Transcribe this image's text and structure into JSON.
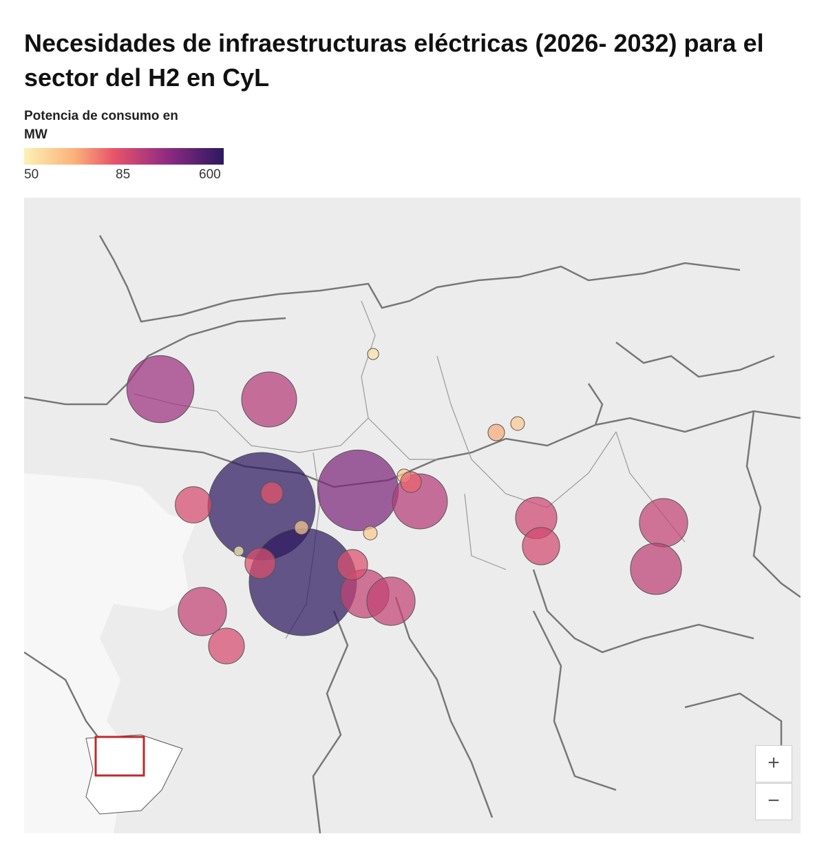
{
  "title": "Necesidades de infraestructuras eléctricas (2026- 2032) para el sector del H2 en CyL",
  "legend": {
    "title": "Potencia de consumo en MW",
    "ticks": [
      50,
      85,
      600
    ]
  },
  "bubbles": {
    "values": [
      300,
      230,
      600,
      600,
      390,
      230,
      140,
      195,
      138,
      195,
      195,
      162,
      144,
      195,
      209,
      116,
      116,
      86,
      54,
      69,
      61,
      61,
      82,
      61,
      61,
      50
    ]
  },
  "zoom": {
    "in": "+",
    "out": "−"
  }
}
